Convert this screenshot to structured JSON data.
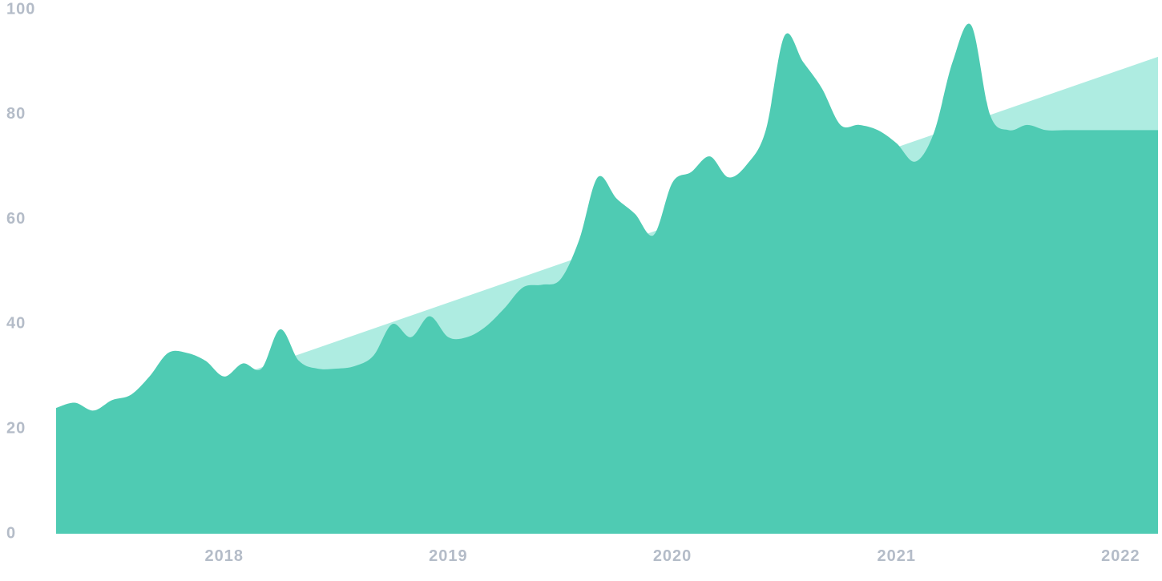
{
  "chart_data": {
    "type": "area",
    "title": "",
    "xlabel": "",
    "ylabel": "",
    "xlim": [
      "2017-04",
      "2022-03"
    ],
    "ylim": [
      0,
      100
    ],
    "grid": false,
    "legend": "none",
    "y_ticks": [
      "0",
      "20",
      "40",
      "60",
      "80",
      "100"
    ],
    "x_ticks": [
      {
        "label": "2018",
        "date": "2018-01"
      },
      {
        "label": "2019",
        "date": "2019-01"
      },
      {
        "label": "2020",
        "date": "2020-01"
      },
      {
        "label": "2021",
        "date": "2021-01"
      },
      {
        "label": "2022",
        "date": "2022-01"
      }
    ],
    "colors": {
      "series": "#4fcbb3",
      "trend": "#aeece1",
      "ticks": "#b4bcc8"
    },
    "trend": {
      "x": [
        "2018-02",
        "2022-03"
      ],
      "y": [
        30.5,
        91
      ]
    },
    "series": {
      "x": [
        "2017-04",
        "2017-05",
        "2017-06",
        "2017-07",
        "2017-08",
        "2017-09",
        "2017-10",
        "2017-11",
        "2017-12",
        "2018-01",
        "2018-02",
        "2018-03",
        "2018-04",
        "2018-05",
        "2018-06",
        "2018-07",
        "2018-08",
        "2018-09",
        "2018-10",
        "2018-11",
        "2018-12",
        "2019-01",
        "2019-02",
        "2019-03",
        "2019-04",
        "2019-05",
        "2019-06",
        "2019-07",
        "2019-08",
        "2019-09",
        "2019-10",
        "2019-11",
        "2019-12",
        "2020-01",
        "2020-02",
        "2020-03",
        "2020-04",
        "2020-05",
        "2020-06",
        "2020-07",
        "2020-08",
        "2020-09",
        "2020-10",
        "2020-11",
        "2020-12",
        "2021-01",
        "2021-02",
        "2021-03",
        "2021-04",
        "2021-05",
        "2021-06",
        "2021-07",
        "2021-08",
        "2021-09",
        "2021-10",
        "2021-11",
        "2021-12",
        "2022-01",
        "2022-02",
        "2022-03"
      ],
      "y": [
        24,
        25,
        23.5,
        25.5,
        26.5,
        30,
        34.5,
        34.5,
        33,
        30,
        32.5,
        31.5,
        39,
        33,
        31.5,
        31.5,
        32,
        34,
        40,
        37.5,
        41.5,
        37.5,
        37.5,
        39.5,
        43,
        47,
        47.5,
        48.5,
        56,
        68,
        64,
        61,
        57,
        67,
        69,
        72,
        68,
        70.5,
        77,
        95,
        90,
        85,
        78,
        78,
        77,
        74.5,
        71,
        76.5,
        90,
        97,
        80,
        77,
        78,
        77,
        77,
        77,
        77,
        77,
        77,
        77
      ]
    }
  }
}
